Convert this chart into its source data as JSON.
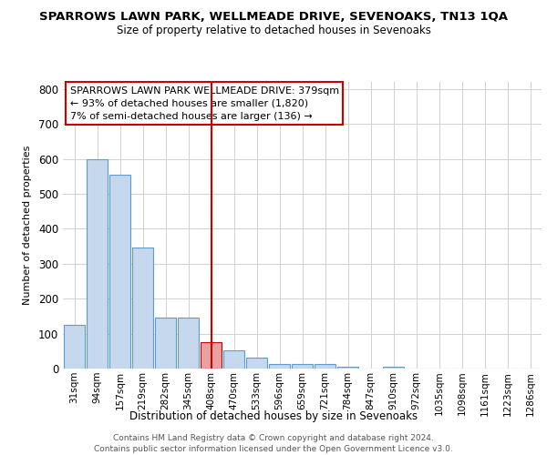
{
  "title": "SPARROWS LAWN PARK, WELLMEADE DRIVE, SEVENOAKS, TN13 1QA",
  "subtitle": "Size of property relative to detached houses in Sevenoaks",
  "xlabel": "Distribution of detached houses by size in Sevenoaks",
  "ylabel": "Number of detached properties",
  "categories": [
    "31sqm",
    "94sqm",
    "157sqm",
    "219sqm",
    "282sqm",
    "345sqm",
    "408sqm",
    "470sqm",
    "533sqm",
    "596sqm",
    "659sqm",
    "721sqm",
    "784sqm",
    "847sqm",
    "910sqm",
    "972sqm",
    "1035sqm",
    "1098sqm",
    "1161sqm",
    "1223sqm",
    "1286sqm"
  ],
  "values": [
    125,
    600,
    555,
    347,
    147,
    147,
    75,
    52,
    30,
    14,
    12,
    12,
    6,
    0,
    6,
    0,
    0,
    0,
    0,
    0,
    0
  ],
  "bar_color": "#c5d8ed",
  "bar_edge_color": "#5a9ecf",
  "highlight_bar_index": 6,
  "highlight_bar_color": "#e8a0a0",
  "highlight_bar_edge_color": "#cc0000",
  "vline_color": "#cc0000",
  "annotation_text": "SPARROWS LAWN PARK WELLMEADE DRIVE: 379sqm\n← 93% of detached houses are smaller (1,820)\n7% of semi-detached houses are larger (136) →",
  "annotation_box_color": "#ffffff",
  "annotation_box_edge_color": "#cc0000",
  "ylim": [
    0,
    820
  ],
  "yticks": [
    0,
    100,
    200,
    300,
    400,
    500,
    600,
    700,
    800
  ],
  "background_color": "#ffffff",
  "grid_color": "#d0d0d0",
  "footer_line1": "Contains HM Land Registry data © Crown copyright and database right 2024.",
  "footer_line2": "Contains public sector information licensed under the Open Government Licence v3.0."
}
